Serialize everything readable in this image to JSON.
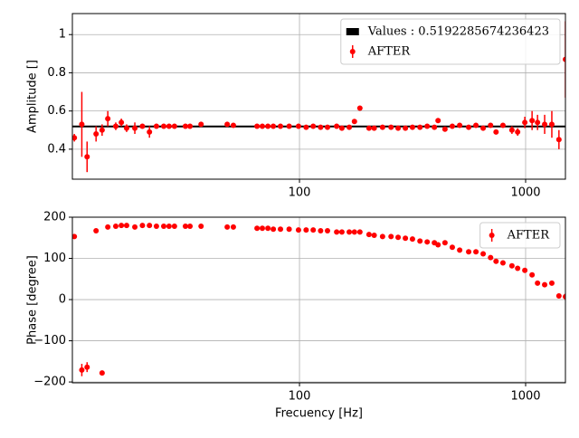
{
  "chart_data": [
    {
      "type": "errorbar",
      "ylabel": "Amplitude []",
      "xlog": true,
      "grid": true,
      "legend": "upper right",
      "xlim": [
        9.9,
        1500
      ],
      "ylim": [
        0.243,
        1.11
      ],
      "xticks": [
        100,
        1000
      ],
      "yticks": [
        0.4,
        0.6,
        0.8,
        1.0
      ],
      "hline": {
        "value": 0.5192285674236423,
        "label": "Values : 0.5192285674236423",
        "color": "#000000"
      },
      "series": [
        {
          "name": "AFTER",
          "color": "#ff0000",
          "x": [
            10.1,
            10.9,
            11.5,
            12.6,
            13.4,
            14.2,
            15.4,
            16.3,
            17.2,
            18.7,
            20.2,
            21.7,
            23.3,
            25.1,
            26.5,
            28,
            31.3,
            32.8,
            36.7,
            47.9,
            51,
            64.9,
            68.5,
            72.5,
            76.6,
            82.4,
            90,
            99,
            107,
            115,
            124,
            133,
            146,
            154,
            166,
            175,
            185,
            203,
            214,
            233,
            254,
            273,
            294,
            316,
            341,
            367,
            395,
            410,
            440,
            474,
            511,
            560,
            603,
            649,
            700,
            740,
            794,
            870,
            922,
            992,
            1068,
            1129,
            1214,
            1306,
            1404,
            1500
          ],
          "values": [
            0.46,
            0.53,
            0.36,
            0.48,
            0.5,
            0.56,
            0.52,
            0.54,
            0.51,
            0.51,
            0.52,
            0.49,
            0.52,
            0.52,
            0.52,
            0.52,
            0.52,
            0.52,
            0.53,
            0.53,
            0.525,
            0.52,
            0.52,
            0.52,
            0.52,
            0.52,
            0.52,
            0.52,
            0.515,
            0.52,
            0.515,
            0.515,
            0.52,
            0.51,
            0.515,
            0.545,
            0.615,
            0.51,
            0.51,
            0.515,
            0.515,
            0.51,
            0.51,
            0.515,
            0.515,
            0.52,
            0.515,
            0.55,
            0.505,
            0.52,
            0.525,
            0.515,
            0.525,
            0.51,
            0.525,
            0.49,
            0.525,
            0.5,
            0.49,
            0.54,
            0.55,
            0.54,
            0.53,
            0.53,
            0.45,
            0.87
          ],
          "errors": [
            0.02,
            0.17,
            0.08,
            0.04,
            0.03,
            0.04,
            0.02,
            0.02,
            0.02,
            0.03,
            0.01,
            0.03,
            0.01,
            0.01,
            0.01,
            0.01,
            0.01,
            0.01,
            0.01,
            0.01,
            0.01,
            0.01,
            0.01,
            0.01,
            0.01,
            0.01,
            0.01,
            0.01,
            0.01,
            0.01,
            0.01,
            0.01,
            0.01,
            0.01,
            0.01,
            0.01,
            0.01,
            0.01,
            0.01,
            0.01,
            0.01,
            0.01,
            0.01,
            0.01,
            0.01,
            0.01,
            0.01,
            0.01,
            0.01,
            0.01,
            0.01,
            0.01,
            0.01,
            0.01,
            0.01,
            0.01,
            0.01,
            0.02,
            0.02,
            0.03,
            0.05,
            0.04,
            0.05,
            0.07,
            0.05,
            0.2
          ]
        }
      ]
    },
    {
      "type": "errorbar",
      "ylabel": "Phase [degree]",
      "xlabel": "Frecuency [Hz]",
      "xlog": true,
      "grid": true,
      "legend": "upper right",
      "xlim": [
        9.9,
        1500
      ],
      "ylim": [
        -202,
        200
      ],
      "xticks": [
        100,
        1000
      ],
      "yticks": [
        {
          "value": -200,
          "label": "−200"
        },
        {
          "value": -100,
          "label": "−100"
        },
        0,
        100,
        200
      ],
      "series": [
        {
          "name": "AFTER",
          "color": "#ff0000",
          "x": [
            10.1,
            10.9,
            11.5,
            12.6,
            13.4,
            14.2,
            15.4,
            16.3,
            17.2,
            18.7,
            20.2,
            21.7,
            23.3,
            25.1,
            26.5,
            28,
            31.3,
            32.8,
            36.7,
            47.9,
            51,
            64.9,
            68.5,
            72.5,
            76.6,
            82.4,
            90,
            99,
            107,
            115,
            124,
            133,
            146,
            154,
            166,
            175,
            185,
            203,
            214,
            233,
            254,
            273,
            294,
            316,
            341,
            367,
            395,
            410,
            440,
            474,
            511,
            560,
            603,
            649,
            700,
            740,
            794,
            870,
            922,
            992,
            1068,
            1129,
            1214,
            1306,
            1404,
            1500
          ],
          "values": [
            153,
            -171,
            -164,
            167,
            -178,
            176,
            178,
            180,
            180,
            176,
            180,
            180,
            178,
            178,
            178,
            178,
            178,
            178,
            178,
            176,
            176,
            173,
            173,
            173,
            171,
            171,
            171,
            169,
            169,
            169,
            167,
            167,
            164,
            164,
            164,
            164,
            164,
            158,
            156,
            153,
            153,
            151,
            149,
            147,
            142,
            140,
            138,
            133,
            138,
            127,
            120,
            116,
            116,
            111,
            102,
            93,
            89,
            82,
            76,
            71,
            60,
            40,
            36,
            40,
            9,
            7
          ],
          "errors": [
            3,
            15,
            12,
            2,
            2,
            2,
            2,
            2,
            2,
            2,
            2,
            2,
            2,
            2,
            2,
            2,
            2,
            2,
            2,
            2,
            2,
            2,
            2,
            2,
            2,
            2,
            2,
            2,
            2,
            2,
            2,
            2,
            2,
            2,
            2,
            2,
            2,
            2,
            2,
            2,
            2,
            2,
            2,
            2,
            2,
            2,
            2,
            2,
            2,
            2,
            2,
            2,
            2,
            2,
            2,
            2,
            2,
            2,
            2,
            2,
            4,
            3,
            4,
            6,
            5,
            8
          ]
        }
      ]
    }
  ]
}
